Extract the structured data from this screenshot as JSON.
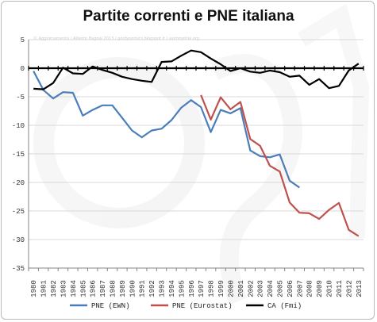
{
  "chart_data": {
    "type": "line",
    "title": "Partite correnti e PNE italiana",
    "xlabel": "",
    "ylabel": "",
    "ylim": [
      -35,
      5
    ],
    "yticks": [
      5,
      0,
      -5,
      -10,
      -15,
      -20,
      -25,
      -30,
      -35
    ],
    "x": [
      "1980",
      "1981",
      "1982",
      "1983",
      "1984",
      "1985",
      "1986",
      "1987",
      "1988",
      "1989",
      "1990",
      "1991",
      "1992",
      "1993",
      "1994",
      "1995",
      "1996",
      "1997",
      "1998",
      "1999",
      "2000",
      "2001",
      "2002",
      "2003",
      "2004",
      "2005",
      "2006",
      "2007",
      "2008",
      "2009",
      "2010",
      "2011",
      "2012",
      "2013"
    ],
    "grid": "horizontal",
    "legend_position": "bottom",
    "series": [
      {
        "name": "PNE (EWN)",
        "color": "#4a7eba",
        "values": [
          -0.5,
          -3.8,
          -5.3,
          -4.2,
          -4.3,
          -8.3,
          -7.3,
          -6.5,
          -6.5,
          -8.7,
          -10.9,
          -12.1,
          -10.9,
          -10.6,
          -9.1,
          -6.9,
          -5.6,
          -6.8,
          -11.2,
          -7.3,
          -7.9,
          -7.0,
          -14.4,
          -15.4,
          -15.6,
          -15.1,
          -19.7,
          -20.9,
          null,
          null,
          null,
          null,
          null,
          null
        ]
      },
      {
        "name": "PNE (Eurostat)",
        "color": "#c0504d",
        "values": [
          null,
          null,
          null,
          null,
          null,
          null,
          null,
          null,
          null,
          null,
          null,
          null,
          null,
          null,
          null,
          null,
          null,
          -4.7,
          -9.0,
          -5.1,
          -7.2,
          -5.9,
          -12.4,
          -13.6,
          -17.1,
          -18.1,
          -23.5,
          -25.3,
          -25.4,
          -26.4,
          -24.8,
          -23.6,
          -28.3,
          -29.4
        ]
      },
      {
        "name": "CA (Fmi)",
        "color": "#000000",
        "values": [
          -3.6,
          -3.7,
          -2.6,
          0.1,
          -0.9,
          -1.0,
          0.3,
          -0.3,
          -0.8,
          -1.5,
          -1.9,
          -2.2,
          -2.4,
          1.1,
          1.2,
          2.2,
          3.1,
          2.8,
          1.7,
          0.7,
          -0.5,
          0.0,
          -0.6,
          -0.8,
          -0.4,
          -0.7,
          -1.5,
          -1.3,
          -2.9,
          -1.9,
          -3.5,
          -3.1,
          -0.4,
          0.8
        ]
      }
    ]
  },
  "watermark": {
    "text": "© Aggiornamento / Alberto Bagnai 2013 / goofynomics.blogspot.it / asimmetrie.org",
    "logo_text": "a/simmetrie"
  }
}
